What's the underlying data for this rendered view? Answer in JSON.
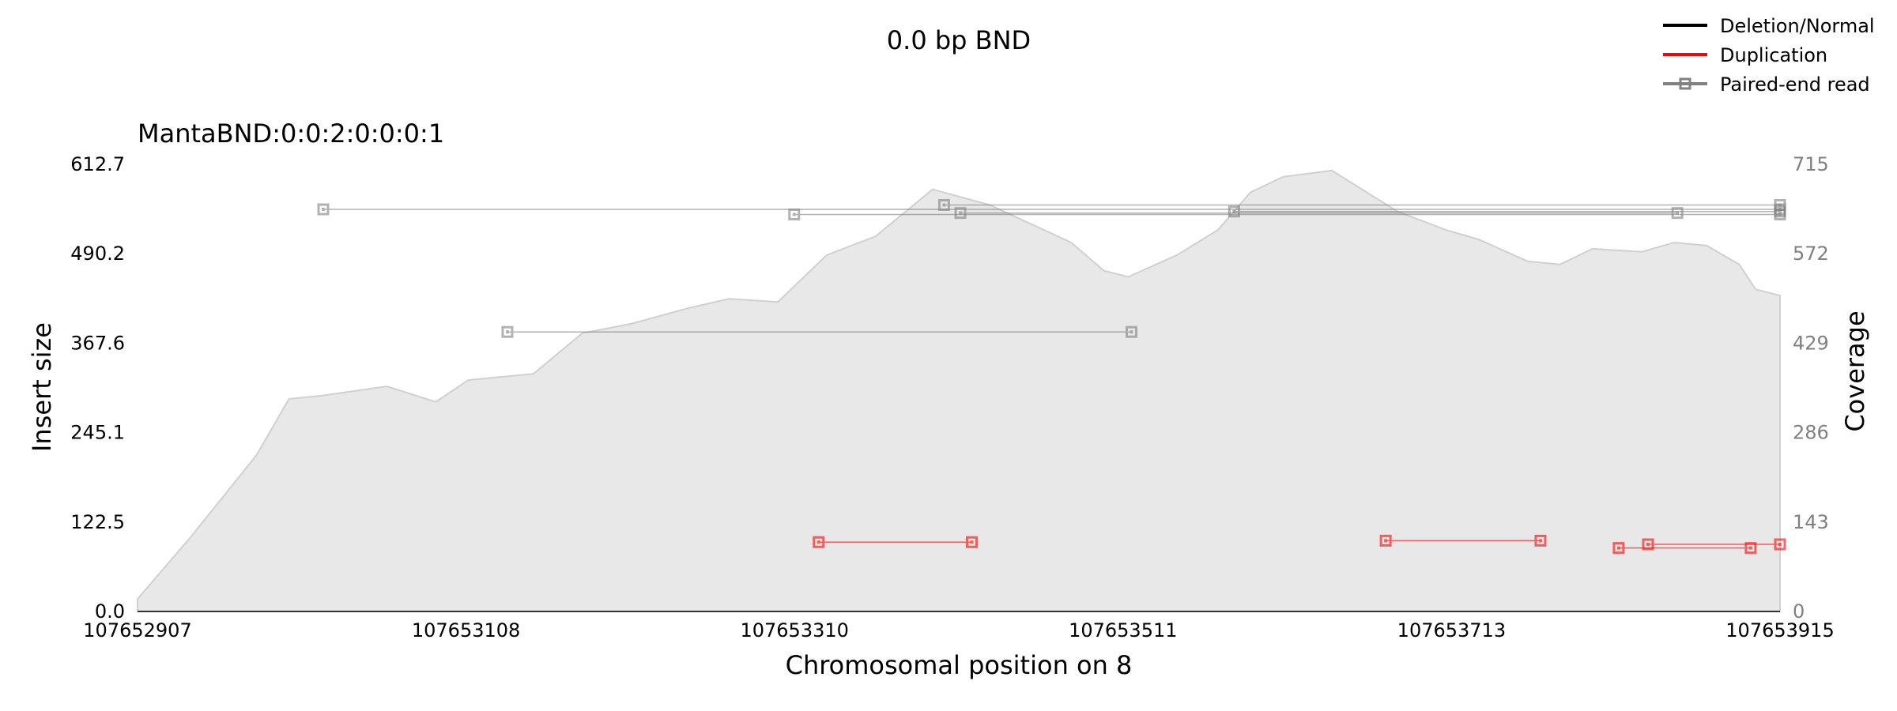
{
  "chart_data": {
    "type": "line",
    "title": "0.0 bp BND",
    "subtitle": "MantaBND:0:0:2:0:0:0:1",
    "xlabel": "Chromosomal position on 8",
    "ylabel": "Insert size",
    "y2label": "Coverage",
    "xlim": [
      107652907,
      107653915
    ],
    "ylim": [
      0.0,
      612.7
    ],
    "y2lim": [
      0,
      715
    ],
    "xticks": [
      "107652907",
      "107653108",
      "107653310",
      "107653511",
      "107653713",
      "107653915"
    ],
    "yticks": [
      "0.0",
      "122.5",
      "245.1",
      "367.6",
      "490.2",
      "612.7"
    ],
    "y2ticks": [
      "0",
      "143",
      "286",
      "429",
      "572",
      "715"
    ],
    "legend": {
      "position": "top-right",
      "items": [
        {
          "label": "Deletion/Normal",
          "color": "#000000",
          "marker": false
        },
        {
          "label": "Duplication",
          "color": "#ff0000",
          "marker": false
        },
        {
          "label": "Paired-end read",
          "color": "#808080",
          "marker": true
        }
      ]
    },
    "colors": {
      "coverage_fill": "#e8e8e8",
      "coverage_line": "#d0d0d0",
      "deletion_normal": "#808080",
      "duplication": "#ff0000"
    },
    "coverage": {
      "x": [
        107652907,
        107652940,
        107652980,
        107653000,
        107653020,
        107653060,
        107653090,
        107653110,
        107653150,
        107653180,
        107653210,
        107653245,
        107653270,
        107653300,
        107653330,
        107653360,
        107653395,
        107653430,
        107653455,
        107653480,
        107653500,
        107653515,
        107653545,
        107653570,
        107653590,
        107653610,
        107653640,
        107653680,
        107653710,
        107653730,
        107653760,
        107653780,
        107653800,
        107653830,
        107653850,
        107653870,
        107653890,
        107653900,
        107653915
      ],
      "y": [
        20,
        120,
        250,
        340,
        345,
        360,
        335,
        370,
        380,
        445,
        460,
        485,
        500,
        495,
        570,
        600,
        675,
        650,
        620,
        590,
        545,
        535,
        570,
        610,
        670,
        695,
        705,
        640,
        610,
        595,
        560,
        555,
        580,
        575,
        590,
        585,
        555,
        515,
        505
      ]
    },
    "pairs": [
      {
        "type": "Deletion/Normal",
        "x1": 107653021,
        "x2": 107653915,
        "y": 551
      },
      {
        "type": "Deletion/Normal",
        "x1": 107653310,
        "x2": 107653915,
        "y": 544
      },
      {
        "type": "Deletion/Normal",
        "x1": 107653402,
        "x2": 107653915,
        "y": 557
      },
      {
        "type": "Deletion/Normal",
        "x1": 107653412,
        "x2": 107653852,
        "y": 546
      },
      {
        "type": "Deletion/Normal",
        "x1": 107653580,
        "x2": 107653915,
        "y": 548
      },
      {
        "type": "Deletion/Normal",
        "x1": 107653134,
        "x2": 107653517,
        "y": 383
      },
      {
        "type": "Duplication",
        "x1": 107653325,
        "x2": 107653419,
        "y": 95
      },
      {
        "type": "Duplication",
        "x1": 107653673,
        "x2": 107653768,
        "y": 97
      },
      {
        "type": "Duplication",
        "x1": 107653816,
        "x2": 107653897,
        "y": 87
      },
      {
        "type": "Duplication",
        "x1": 107653834,
        "x2": 107653915,
        "y": 92
      }
    ]
  }
}
